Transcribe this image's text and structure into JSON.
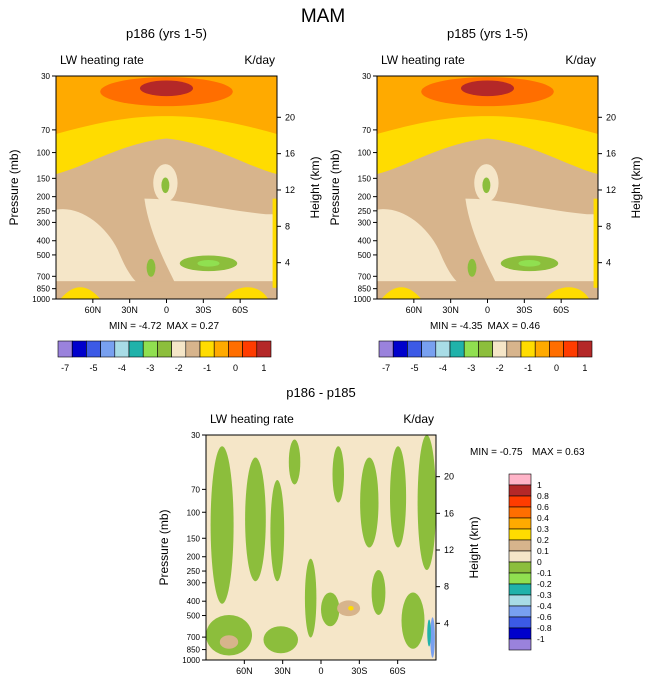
{
  "figure": {
    "title": "MAM"
  },
  "colors": {
    "cool": [
      "#9a82dc",
      "#0000cc",
      "#3c5ae6",
      "#78a0f0",
      "#a8dce6",
      "#20b2aa",
      "#90e050",
      "#8cbe3c"
    ],
    "warm": [
      "#f5e6c8",
      "#d7b48c",
      "#ffdc00",
      "#ffaa00",
      "#ff6e00",
      "#ff3c00",
      "#b42828",
      "#ffb4c8",
      "#ff1e96"
    ],
    "diff": [
      "#9a82dc",
      "#0000cc",
      "#3c5ae6",
      "#78a0f0",
      "#a8dce6",
      "#20b2aa",
      "#90e050",
      "#8cbe3c",
      "#f5e6c8",
      "#d7b48c",
      "#ffdc00",
      "#ffaa00",
      "#ff6e00",
      "#ff3c00",
      "#b42828",
      "#ffb4c8",
      "#ff1e96"
    ]
  },
  "chart_data": [
    {
      "type": "contour",
      "title": "p186 (yrs 1-5)",
      "left_label": "LW heating rate",
      "right_label": "K/day",
      "ylabel": "Pressure (mb)",
      "y2label": "Height (km)",
      "x_ticks": [
        "60N",
        "30N",
        "0",
        "30S",
        "60S"
      ],
      "x_tick_values": [
        60,
        30,
        0,
        -30,
        -60
      ],
      "xlim": [
        90,
        -90
      ],
      "y_ticks": [
        "30",
        "70",
        "100",
        "150",
        "200",
        "250",
        "300",
        "400",
        "500",
        "700",
        "850",
        "1000"
      ],
      "y_tick_values": [
        30,
        70,
        100,
        150,
        200,
        250,
        300,
        400,
        500,
        700,
        850,
        1000
      ],
      "ylim_mb": [
        30,
        1000
      ],
      "height_ticks": [
        "20",
        "16",
        "12",
        "8",
        "4"
      ],
      "height_tick_values": [
        20,
        16,
        12,
        8,
        4
      ],
      "min_label": "MIN = -4.72",
      "max_label": "MAX = 0.27",
      "min": -4.72,
      "max": 0.27
    },
    {
      "type": "contour",
      "title": "p185 (yrs 1-5)",
      "left_label": "LW heating rate",
      "right_label": "K/day",
      "ylabel": "Pressure (mb)",
      "y2label": "Height (km)",
      "x_ticks": [
        "60N",
        "30N",
        "0",
        "30S",
        "60S"
      ],
      "x_tick_values": [
        60,
        30,
        0,
        -30,
        -60
      ],
      "xlim": [
        90,
        -90
      ],
      "y_ticks": [
        "30",
        "70",
        "100",
        "150",
        "200",
        "250",
        "300",
        "400",
        "500",
        "700",
        "850",
        "1000"
      ],
      "y_tick_values": [
        30,
        70,
        100,
        150,
        200,
        250,
        300,
        400,
        500,
        700,
        850,
        1000
      ],
      "ylim_mb": [
        30,
        1000
      ],
      "height_ticks": [
        "20",
        "16",
        "12",
        "8",
        "4"
      ],
      "height_tick_values": [
        20,
        16,
        12,
        8,
        4
      ],
      "min_label": "MIN = -4.35",
      "max_label": "MAX = 0.46",
      "min": -4.35,
      "max": 0.46
    },
    {
      "type": "contour",
      "title": "p186 - p185",
      "left_label": "LW heating rate",
      "right_label": "K/day",
      "ylabel": "Pressure (mb)",
      "y2label": "Height (km)",
      "x_ticks": [
        "60N",
        "30N",
        "0",
        "30S",
        "60S"
      ],
      "x_tick_values": [
        60,
        30,
        0,
        -30,
        -60
      ],
      "xlim": [
        90,
        -90
      ],
      "y_ticks": [
        "30",
        "70",
        "100",
        "150",
        "200",
        "250",
        "300",
        "400",
        "500",
        "700",
        "850",
        "1000"
      ],
      "y_tick_values": [
        30,
        70,
        100,
        150,
        200,
        250,
        300,
        400,
        500,
        700,
        850,
        1000
      ],
      "ylim_mb": [
        30,
        1000
      ],
      "height_ticks": [
        "20",
        "16",
        "12",
        "8",
        "4"
      ],
      "height_tick_values": [
        20,
        16,
        12,
        8,
        4
      ],
      "min_label": "MIN = -0.75",
      "max_label": "MAX = 0.63",
      "min": -0.75,
      "max": 0.63
    }
  ],
  "colorbar_top": {
    "labels": [
      "-7",
      "-5",
      "-4",
      "-3",
      "-2",
      "-1",
      "0",
      "1"
    ],
    "boundaries": [
      -7,
      -6,
      -5,
      -4.5,
      -4,
      -3.5,
      -3,
      -2.5,
      -2,
      -1.5,
      -1,
      -0.5,
      0,
      0.5,
      1
    ],
    "labeled_boundaries": [
      0,
      2,
      4,
      6,
      8,
      10,
      12,
      14
    ]
  },
  "colorbar_diff": {
    "labels": [
      "1",
      "0.8",
      "0.6",
      "0.4",
      "0.3",
      "0.2",
      "0.1",
      "0",
      "-0.1",
      "-0.2",
      "-0.3",
      "-0.4",
      "-0.6",
      "-0.8",
      "-1"
    ]
  }
}
